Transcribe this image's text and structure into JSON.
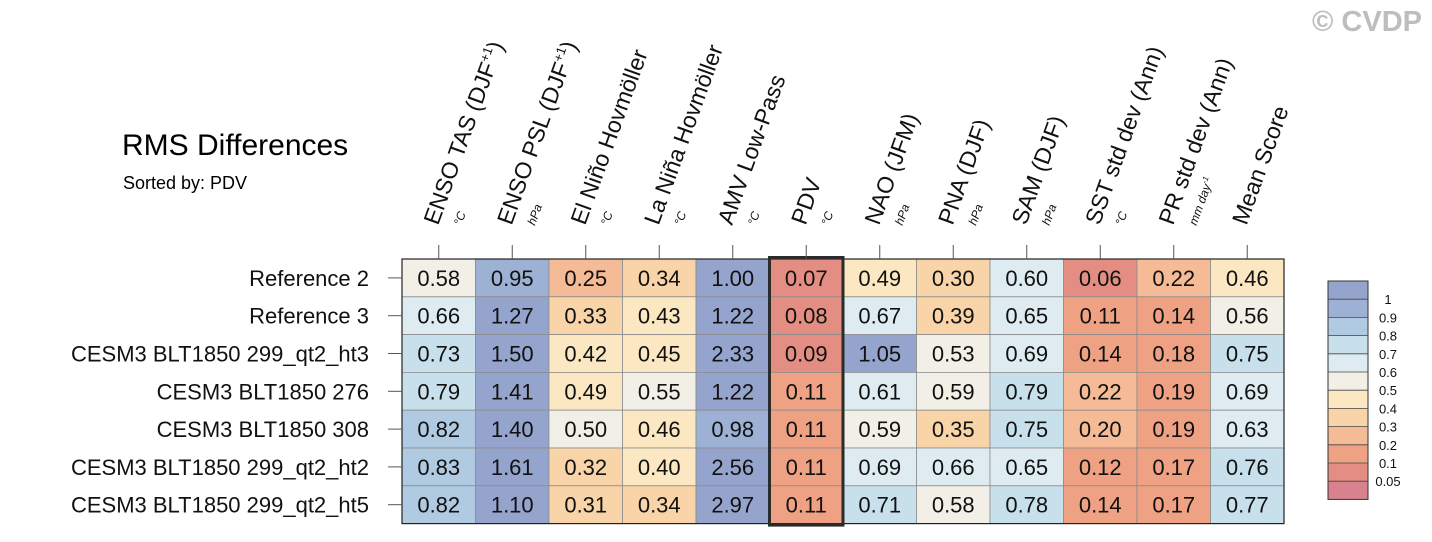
{
  "copyright": "© CVDP",
  "title": "RMS Differences",
  "subtitle": "Sorted by: PDV",
  "chart_data": {
    "type": "heatmap",
    "columns": [
      {
        "label": "ENSO TAS (DJF+1)",
        "unit": "°C"
      },
      {
        "label": "ENSO PSL (DJF+1)",
        "unit": "hPa"
      },
      {
        "label": "El Niño Hovmöller",
        "unit": "°C"
      },
      {
        "label": "La Niña Hovmöller",
        "unit": "°C"
      },
      {
        "label": "AMV Low-Pass",
        "unit": "°C"
      },
      {
        "label": "PDV",
        "unit": "°C"
      },
      {
        "label": "NAO (JFM)",
        "unit": "hPa"
      },
      {
        "label": "PNA (DJF)",
        "unit": "hPa"
      },
      {
        "label": "SAM (DJF)",
        "unit": "hPa"
      },
      {
        "label": "SST std dev (Ann)",
        "unit": "°C"
      },
      {
        "label": "PR std dev (Ann)",
        "unit": "mm day-1"
      },
      {
        "label": "Mean Score",
        "unit": ""
      }
    ],
    "rows": [
      {
        "label": "Reference 2",
        "values": [
          0.58,
          0.95,
          0.25,
          0.34,
          1.0,
          0.07,
          0.49,
          0.3,
          0.6,
          0.06,
          0.22,
          0.46
        ]
      },
      {
        "label": "Reference 3",
        "values": [
          0.66,
          1.27,
          0.33,
          0.43,
          1.22,
          0.08,
          0.67,
          0.39,
          0.65,
          0.11,
          0.14,
          0.56
        ]
      },
      {
        "label": "CESM3 BLT1850 299_qt2_ht3",
        "values": [
          0.73,
          1.5,
          0.42,
          0.45,
          2.33,
          0.09,
          1.05,
          0.53,
          0.69,
          0.14,
          0.18,
          0.75
        ]
      },
      {
        "label": "CESM3 BLT1850 276",
        "values": [
          0.79,
          1.41,
          0.49,
          0.55,
          1.22,
          0.11,
          0.61,
          0.59,
          0.79,
          0.22,
          0.19,
          0.69
        ]
      },
      {
        "label": "CESM3 BLT1850 308",
        "values": [
          0.82,
          1.4,
          0.5,
          0.46,
          0.98,
          0.11,
          0.59,
          0.35,
          0.75,
          0.2,
          0.19,
          0.63
        ]
      },
      {
        "label": "CESM3 BLT1850 299_qt2_ht2",
        "values": [
          0.83,
          1.61,
          0.32,
          0.4,
          2.56,
          0.11,
          0.69,
          0.66,
          0.65,
          0.12,
          0.17,
          0.76
        ]
      },
      {
        "label": "CESM3 BLT1850 299_qt2_ht5",
        "values": [
          0.82,
          1.1,
          0.31,
          0.34,
          2.97,
          0.11,
          0.71,
          0.58,
          0.78,
          0.14,
          0.17,
          0.77
        ]
      }
    ],
    "highlighted_column": "PDV",
    "colorbar": {
      "levels": [
        "0.05",
        "0.1",
        "0.2",
        "0.3",
        "0.4",
        "0.5",
        "0.6",
        "0.7",
        "0.8",
        "0.9",
        "1"
      ],
      "colors": [
        "#d8818f",
        "#e48e83",
        "#eea183",
        "#f4bb96",
        "#f8d4a8",
        "#fbe8c2",
        "#f2f0e6",
        "#deecf1",
        "#c8e0ec",
        "#b0cae2",
        "#9cb1d3",
        "#95a4cd"
      ]
    }
  }
}
